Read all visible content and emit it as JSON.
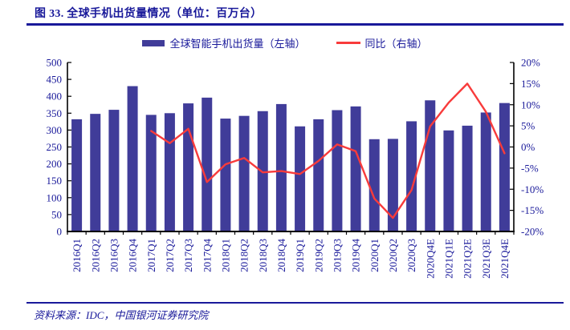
{
  "figure": {
    "title": "图 33. 全球手机出货量情况（单位：百万台）",
    "source": "资料来源：IDC，中国银河证券研究院"
  },
  "legend": [
    {
      "label": "全球智能手机出货量（左轴）",
      "type": "bar",
      "color": "#403c99"
    },
    {
      "label": "同比（右轴）",
      "type": "line",
      "color": "#f83b3b"
    }
  ],
  "colors": {
    "bar": "#403c99",
    "line": "#f83b3b",
    "text_navy": "#19199a",
    "axis": "#000000",
    "background": "#ffffff"
  },
  "chart_data": {
    "type": "bar",
    "subtype": "bar+line combo, dual axis",
    "title": "全球手机出货量情况（单位：百万台）",
    "categories": [
      "2016Q1",
      "2016Q2",
      "2016Q3",
      "2016Q4",
      "2017Q1",
      "2017Q2",
      "2017Q3",
      "2017Q4",
      "2018Q1",
      "2018Q2",
      "2018Q3",
      "2018Q4",
      "2019Q1",
      "2019Q2",
      "2019Q3",
      "2019Q4",
      "2020Q1",
      "2020Q2",
      "2020Q3",
      "2020Q4E",
      "2021Q1E",
      "2021Q2E",
      "2021Q3E",
      "2021Q4E"
    ],
    "series": [
      {
        "name": "全球智能手机出货量（左轴）",
        "type": "bar",
        "axis": "left",
        "values": [
          332,
          348,
          360,
          430,
          345,
          350,
          379,
          396,
          334,
          342,
          356,
          377,
          311,
          332,
          359,
          370,
          273,
          274,
          326,
          388,
          299,
          313,
          352,
          380
        ]
      },
      {
        "name": "同比（右轴）",
        "type": "line",
        "axis": "right",
        "values": [
          null,
          null,
          null,
          null,
          3.8,
          0.9,
          4.3,
          -8.3,
          -4.1,
          -2.6,
          -6.0,
          -5.7,
          -6.4,
          -3.3,
          0.6,
          -1.0,
          -12.2,
          -16.8,
          -10.2,
          4.9,
          10.5,
          15.0,
          8.3,
          -1.5
        ]
      }
    ],
    "left_axis": {
      "min": 0,
      "max": 500,
      "step": 50,
      "tick_labels": [
        "500",
        "450",
        "400",
        "350",
        "300",
        "250",
        "200",
        "150",
        "100",
        "50",
        "0"
      ]
    },
    "right_axis": {
      "min": -20,
      "max": 20,
      "step": 5,
      "tick_labels": [
        "20%",
        "15%",
        "10%",
        "5%",
        "0%",
        "-5%",
        "-10%",
        "-15%",
        "-20%"
      ]
    },
    "grid": false,
    "legend_position": "top-center",
    "x_label_rotation": -90
  }
}
